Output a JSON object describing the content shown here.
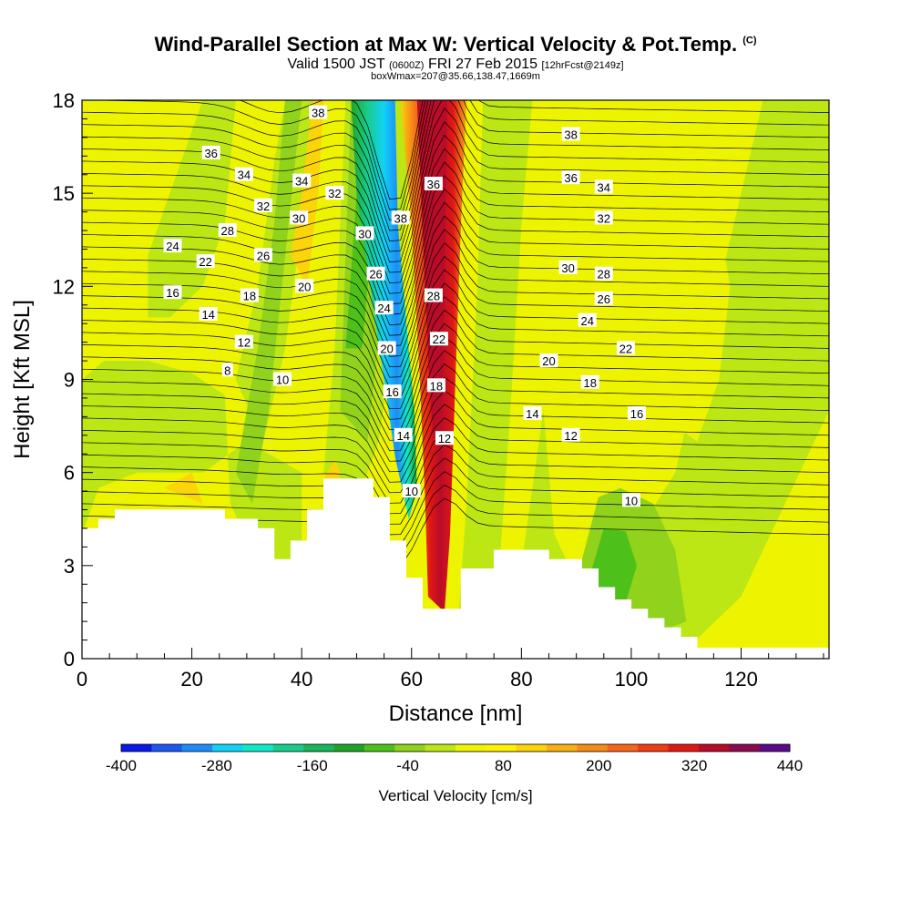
{
  "header": {
    "title": "Wind-Parallel Section at Max W: Vertical Velocity & Pot.Temp.",
    "copyright": "(C)",
    "valid_prefix": "Valid 1500 JST",
    "valid_utc": "(0600Z)",
    "valid_date": "FRI 27 Feb 2015",
    "forecast": "[12hrFcst@2149z]",
    "box": "boxWmax=207@35.66,138.47,1669m"
  },
  "chart_data": {
    "type": "heatmap",
    "title": "Wind-Parallel Section at Max W: Vertical Velocity & Pot.Temp.",
    "xlabel": "Distance [nm]",
    "ylabel": "Height [Kft MSL]",
    "xlim": [
      0,
      136
    ],
    "ylim": [
      0,
      18
    ],
    "x_ticks": [
      0,
      20,
      40,
      60,
      80,
      100,
      120
    ],
    "y_ticks": [
      0,
      3,
      6,
      9,
      12,
      15,
      18
    ],
    "grid": false,
    "colorbar": {
      "label": "Vertical Velocity [cm/s]",
      "ticks": [
        -400,
        -280,
        -160,
        -40,
        80,
        200,
        320,
        440
      ],
      "colors": [
        "#0a18e8",
        "#1e58f0",
        "#1e8cf8",
        "#10d2f5",
        "#10e8c8",
        "#18cc8c",
        "#1ab45a",
        "#20a428",
        "#4ec01a",
        "#90d21c",
        "#bce614",
        "#eef400",
        "#fff200",
        "#fcd40a",
        "#f8b012",
        "#f58c18",
        "#f4661c",
        "#f03c14",
        "#e01814",
        "#b80c28",
        "#8c0a50",
        "#5a0a8c"
      ]
    },
    "contours": {
      "variable": "Potential temperature",
      "labels": [
        {
          "v": "36",
          "x": 23.5,
          "y": 16.3
        },
        {
          "v": "34",
          "x": 29.5,
          "y": 15.6
        },
        {
          "v": "32",
          "x": 33,
          "y": 14.6
        },
        {
          "v": "28",
          "x": 26.5,
          "y": 13.8
        },
        {
          "v": "24",
          "x": 16.5,
          "y": 13.3
        },
        {
          "v": "22",
          "x": 22.5,
          "y": 12.8
        },
        {
          "v": "26",
          "x": 33,
          "y": 13.0
        },
        {
          "v": "16",
          "x": 16.5,
          "y": 11.8
        },
        {
          "v": "18",
          "x": 30.5,
          "y": 11.7
        },
        {
          "v": "14",
          "x": 23,
          "y": 11.1
        },
        {
          "v": "12",
          "x": 29.5,
          "y": 10.2
        },
        {
          "v": "8",
          "x": 26.5,
          "y": 9.3
        },
        {
          "v": "10",
          "x": 36.5,
          "y": 9.0
        },
        {
          "v": "38",
          "x": 43,
          "y": 17.6
        },
        {
          "v": "34",
          "x": 40,
          "y": 15.4
        },
        {
          "v": "32",
          "x": 46,
          "y": 15.0
        },
        {
          "v": "30",
          "x": 39.5,
          "y": 14.2
        },
        {
          "v": "20",
          "x": 40.5,
          "y": 12.0
        },
        {
          "v": "30",
          "x": 51.5,
          "y": 13.7
        },
        {
          "v": "38",
          "x": 58,
          "y": 14.2
        },
        {
          "v": "26",
          "x": 53.5,
          "y": 12.4
        },
        {
          "v": "24",
          "x": 55,
          "y": 11.3
        },
        {
          "v": "20",
          "x": 55.5,
          "y": 10.0
        },
        {
          "v": "16",
          "x": 56.5,
          "y": 8.6
        },
        {
          "v": "14",
          "x": 58.5,
          "y": 7.2
        },
        {
          "v": "10",
          "x": 60,
          "y": 5.4
        },
        {
          "v": "36",
          "x": 64,
          "y": 15.3
        },
        {
          "v": "28",
          "x": 64,
          "y": 11.7
        },
        {
          "v": "22",
          "x": 65,
          "y": 10.3
        },
        {
          "v": "18",
          "x": 64.5,
          "y": 8.8
        },
        {
          "v": "12",
          "x": 66,
          "y": 7.1
        },
        {
          "v": "38",
          "x": 89,
          "y": 16.9
        },
        {
          "v": "36",
          "x": 89,
          "y": 15.5
        },
        {
          "v": "34",
          "x": 95,
          "y": 15.2
        },
        {
          "v": "32",
          "x": 95,
          "y": 14.2
        },
        {
          "v": "30",
          "x": 88.5,
          "y": 12.6
        },
        {
          "v": "28",
          "x": 95,
          "y": 12.4
        },
        {
          "v": "26",
          "x": 95,
          "y": 11.6
        },
        {
          "v": "24",
          "x": 92,
          "y": 10.9
        },
        {
          "v": "22",
          "x": 99,
          "y": 10.0
        },
        {
          "v": "20",
          "x": 85,
          "y": 9.6
        },
        {
          "v": "18",
          "x": 92.5,
          "y": 8.9
        },
        {
          "v": "14",
          "x": 82,
          "y": 7.9
        },
        {
          "v": "16",
          "x": 101,
          "y": 7.9
        },
        {
          "v": "12",
          "x": 89,
          "y": 7.2
        },
        {
          "v": "10",
          "x": 100,
          "y": 5.1
        }
      ]
    },
    "terrain": [
      [
        0,
        4.2
      ],
      [
        3,
        4.5
      ],
      [
        6,
        4.8
      ],
      [
        26,
        4.5
      ],
      [
        32,
        4.2
      ],
      [
        35,
        3.2
      ],
      [
        38,
        3.8
      ],
      [
        41,
        4.8
      ],
      [
        44,
        5.8
      ],
      [
        53,
        5.2
      ],
      [
        56,
        3.8
      ],
      [
        59,
        2.6
      ],
      [
        62,
        1.6
      ],
      [
        69,
        2.9
      ],
      [
        75,
        3.5
      ],
      [
        85,
        3.2
      ],
      [
        91,
        2.9
      ],
      [
        94,
        2.3
      ],
      [
        97,
        1.9
      ],
      [
        100,
        1.6
      ],
      [
        103,
        1.3
      ],
      [
        106,
        1.0
      ],
      [
        109,
        0.7
      ],
      [
        112,
        0.35
      ],
      [
        136,
        0.35
      ]
    ]
  }
}
